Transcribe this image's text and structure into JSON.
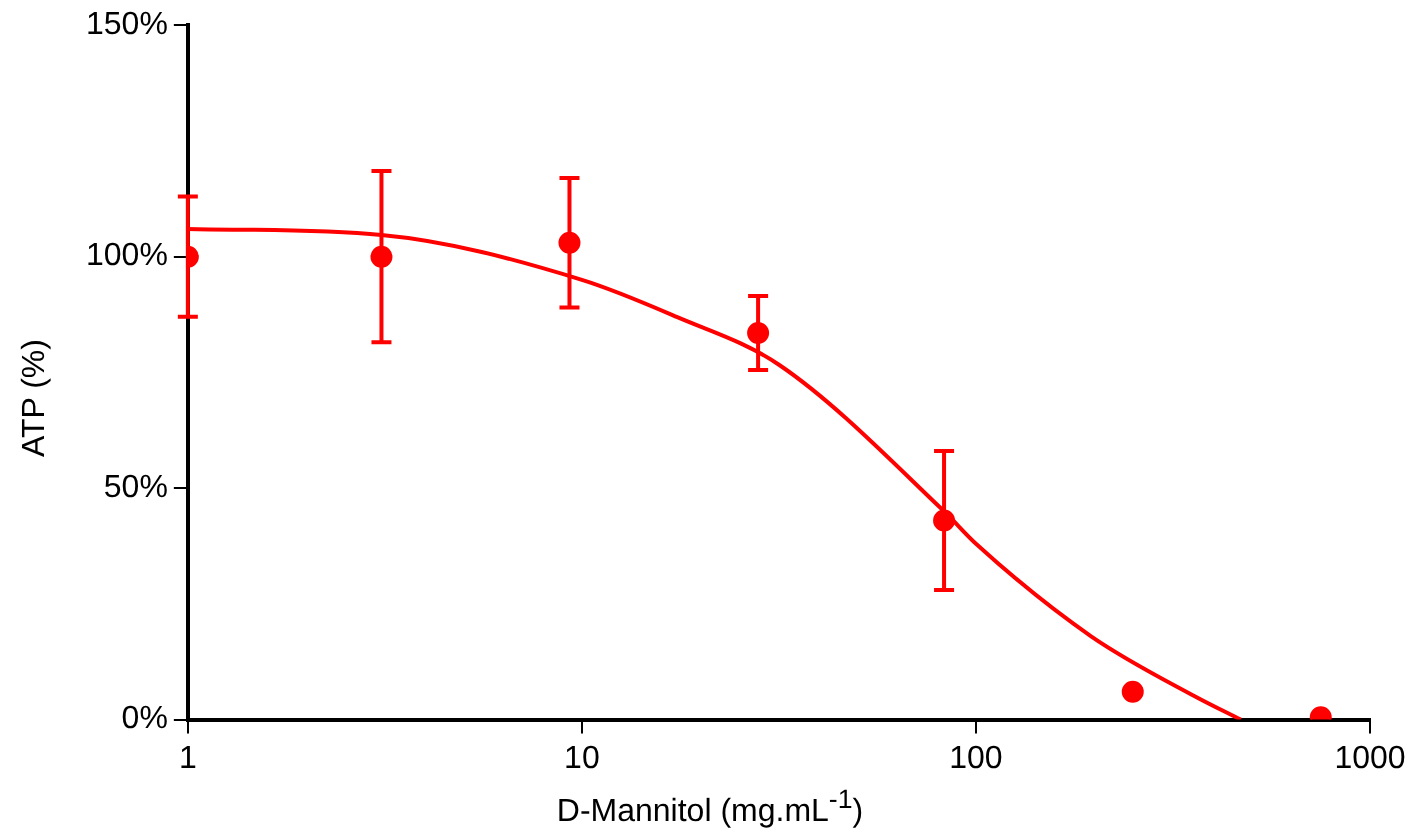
{
  "chart_data": {
    "type": "scatter",
    "xlabel": "D-Mannitol (mg.mL$^{-1}$)",
    "ylabel": "ATP (%)",
    "log": "x",
    "xlim": [
      1,
      1000
    ],
    "xticks": [
      1,
      10,
      100,
      1000
    ],
    "ylim": [
      0,
      150
    ],
    "yticks": [
      {
        "value": 0,
        "label": "0%"
      },
      {
        "value": 50,
        "label": "50%"
      },
      {
        "value": 100,
        "label": "100%"
      },
      {
        "value": 150,
        "label": "150%"
      }
    ],
    "grid": false,
    "legend": false,
    "series": [
      {
        "color": "#ff0000",
        "marker": "circle",
        "x": [
          1,
          3.1,
          9.3,
          28,
          83,
          250,
          750
        ],
        "values": [
          100,
          100,
          103,
          83.5,
          43,
          6,
          0.5
        ],
        "errors": [
          13,
          18.5,
          14,
          8,
          15,
          null,
          null
        ]
      },
      {
        "type": "line",
        "color": "#ff0000",
        "marker": "none",
        "x": [
          1,
          3.1,
          10,
          17.4,
          31.7,
          83,
          100,
          196,
          360,
          470
        ],
        "values": [
          106,
          104.7,
          95,
          87,
          76.6,
          45,
          38,
          18,
          5,
          0
        ]
      }
    ]
  }
}
